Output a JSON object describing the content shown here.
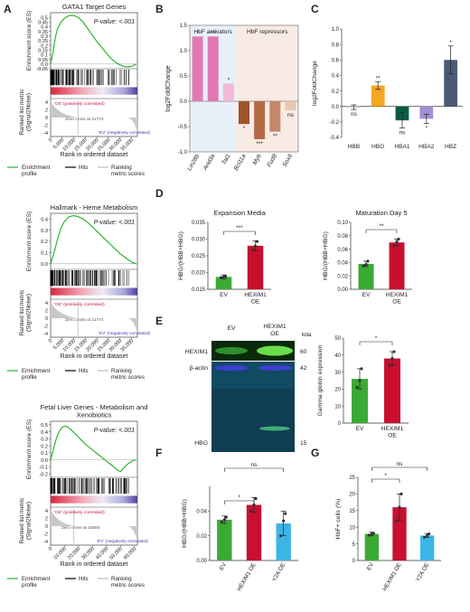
{
  "panel_letters": [
    "A",
    "B",
    "C",
    "D",
    "E",
    "F",
    "G"
  ],
  "gsea_common": {
    "es_axis_label": "Enrichment score (ES)",
    "metric_axis_label": "Ranked list metric\n(Signal2Noise)",
    "x_axis_label": "Rank in ordered dataset",
    "pos_label": "'OE' (positively correlated)",
    "neg_label": "'EV' (negatively correlated)",
    "legend": [
      "Enrichment\nprofile",
      "Hits",
      "Ranking\nmetric scores"
    ],
    "line_color": "#2db52d",
    "hit_color": "#000000"
  },
  "chart_data": [
    {
      "type": "line",
      "panel": "A1",
      "title": "GATA1 Target Genes",
      "pvalue": "P-value: <.001",
      "zero_cross": "Zero cross at 11774",
      "x_ticks": [
        "0",
        "5,000",
        "10,000",
        "15,000",
        "20,000",
        "25,000",
        "30,000",
        "35,000"
      ],
      "xlim": [
        0,
        37500
      ],
      "ylim": [
        -0.05,
        0.55
      ],
      "y_ticks": [
        "0.5",
        "0.45",
        "0.4",
        "0.35",
        "0.3",
        "0.25",
        "0.2",
        "0.15",
        "0.1",
        "0.05",
        "0.0",
        "-0.05"
      ],
      "metric_ticks": [
        "4",
        "2",
        "0",
        "-2",
        "-4"
      ],
      "x": [
        0,
        1000,
        2000,
        3000,
        4500,
        6000,
        8000,
        10000,
        12000,
        14000,
        16000,
        18000,
        20000,
        22000,
        24000,
        26000,
        28000,
        30000,
        32000,
        34000,
        35500,
        37000
      ],
      "es": [
        0.0,
        0.12,
        0.28,
        0.38,
        0.45,
        0.49,
        0.52,
        0.52,
        0.5,
        0.45,
        0.38,
        0.31,
        0.24,
        0.18,
        0.12,
        0.06,
        0.02,
        -0.01,
        -0.03,
        -0.03,
        -0.02,
        0.0
      ]
    },
    {
      "type": "line",
      "panel": "A2",
      "title": "Hallmark - Heme Metabolism",
      "pvalue": "P-value: <.001",
      "zero_cross": "Zero cross at 11774",
      "x_ticks": [
        "0",
        "5,000",
        "10,000",
        "15,000",
        "20,000",
        "25,000",
        "30,000",
        "35,000"
      ],
      "xlim": [
        0,
        37500
      ],
      "ylim": [
        -0.05,
        0.45
      ],
      "y_ticks": [
        "0.4",
        "0.3",
        "0.2",
        "0.1",
        "0.0"
      ],
      "metric_ticks": [
        "4",
        "2",
        "0",
        "-2",
        "-4"
      ],
      "x": [
        0,
        1500,
        3000,
        4500,
        6000,
        8000,
        10000,
        12000,
        14000,
        16000,
        18000,
        20000,
        22000,
        24000,
        26000,
        28000,
        30000,
        32000,
        34000,
        35500,
        37000
      ],
      "es": [
        0.0,
        0.1,
        0.22,
        0.32,
        0.38,
        0.42,
        0.43,
        0.42,
        0.4,
        0.37,
        0.33,
        0.29,
        0.25,
        0.21,
        0.17,
        0.13,
        0.09,
        0.06,
        0.03,
        0.01,
        0.0
      ]
    },
    {
      "type": "line",
      "panel": "A3",
      "title": "Fetal Liver Genes - Metabolism and\nXenobiotics",
      "pvalue": "P-value: <.001",
      "zero_cross": "Zero cross at 16684",
      "x_ticks": [
        "0",
        "10,000",
        "20,000",
        "30,000",
        "40,000",
        "50,000",
        "60,000"
      ],
      "xlim": [
        0,
        62000
      ],
      "ylim": [
        -0.25,
        0.55
      ],
      "y_ticks": [
        "0.5",
        "0.4",
        "0.3",
        "0.2",
        "0.1",
        "0.0",
        "-0.1",
        "-0.2"
      ],
      "metric_ticks": [
        "4",
        "2",
        "0",
        "-2",
        "-4"
      ],
      "x": [
        0,
        2000,
        4000,
        6000,
        8000,
        10000,
        12000,
        14000,
        16000,
        20000,
        25000,
        30000,
        35000,
        40000,
        45000,
        48000,
        50000,
        52000,
        55000,
        58000,
        61000
      ],
      "es": [
        0.0,
        0.15,
        0.3,
        0.4,
        0.46,
        0.48,
        0.47,
        0.44,
        0.4,
        0.32,
        0.22,
        0.14,
        0.06,
        -0.02,
        -0.1,
        -0.15,
        -0.17,
        -0.12,
        -0.06,
        -0.02,
        0.0
      ]
    },
    {
      "type": "bar",
      "panel": "B",
      "ylabel": "log2FoldChange",
      "ylim": [
        -1.0,
        1.5
      ],
      "y_ticks": [
        "1.5",
        "1.0",
        "0.5",
        "0.0",
        "-0.5",
        "-1.0"
      ],
      "groups": [
        "HbF activators",
        "HbF repressors"
      ],
      "categories": [
        "Lin28b",
        "Arid3a",
        "Tal1",
        "Bcl11a",
        "Myb",
        "Fud8",
        "Sox6"
      ],
      "values": [
        1.28,
        1.28,
        0.35,
        -0.45,
        -0.75,
        -0.6,
        -0.18
      ],
      "significance": [
        "*",
        "***",
        "*",
        "*",
        "***",
        "**",
        "ns"
      ],
      "colors": [
        "#e07ab2",
        "#e07ab2",
        "#f2b9d6",
        "#a0522d",
        "#b36b45",
        "#c4876b",
        "#e8c7b0"
      ]
    },
    {
      "type": "bar",
      "panel": "C",
      "ylabel": "log2FoldChange",
      "ylim": [
        -0.4,
        1.0
      ],
      "y_ticks": [
        "1.0",
        "0.8",
        "0.6",
        "0.4",
        "0.2",
        "0.0",
        "-0.2",
        "-0.4"
      ],
      "categories": [
        "HBB",
        "HBG",
        "HBA1",
        "HBA2",
        "HBZ"
      ],
      "values": [
        -0.01,
        0.27,
        -0.18,
        -0.16,
        0.6
      ],
      "errors": [
        0.03,
        0.05,
        0.1,
        0.06,
        0.18
      ],
      "significance": [
        "ns",
        "**",
        "ns",
        "*",
        "*"
      ],
      "colors": [
        "#f0f0f0",
        "#f5a623",
        "#0a5c46",
        "#a48fd4",
        "#4a5a75"
      ]
    },
    {
      "type": "bar",
      "panel": "D1",
      "title": "Expansion Media",
      "ylabel": "HBG/(HBB+HBG)",
      "ylim": [
        0.015,
        0.035
      ],
      "y_ticks": [
        "0.035",
        "0.030",
        "0.025",
        "0.020",
        "0.015"
      ],
      "categories": [
        "EV",
        "HEXIM1\nOE"
      ],
      "values": [
        0.0187,
        0.028
      ],
      "errors": [
        0.0006,
        0.0015
      ],
      "points": [
        [
          0.0185,
          0.0189,
          0.0187
        ],
        [
          0.0268,
          0.0293,
          0.0279
        ]
      ],
      "significance": [
        "***"
      ],
      "colors": [
        "#3aaa35",
        "#c8102e"
      ]
    },
    {
      "type": "bar",
      "panel": "D2",
      "title": "Maturation Day 5",
      "ylabel": "HBG/(HBB+HBG)",
      "ylim": [
        0.0,
        0.1
      ],
      "y_ticks": [
        "0.10",
        "0.08",
        "0.06",
        "0.04",
        "0.02",
        "0.00"
      ],
      "categories": [
        "EV",
        "HEXIM1\nOE"
      ],
      "values": [
        0.038,
        0.07
      ],
      "errors": [
        0.004,
        0.005
      ],
      "points": [
        [
          0.035,
          0.042,
          0.037
        ],
        [
          0.065,
          0.075,
          0.071
        ]
      ],
      "significance": [
        "**"
      ],
      "colors": [
        "#3aaa35",
        "#c8102e"
      ]
    },
    {
      "type": "bar",
      "panel": "E",
      "ylabel": "Gamma globin expression",
      "ylim": [
        0,
        50
      ],
      "y_ticks": [
        "50",
        "40",
        "30",
        "20",
        "10",
        "0"
      ],
      "categories": [
        "EV",
        "HEXIM1\nOE"
      ],
      "values": [
        26,
        38
      ],
      "errors": [
        6,
        4
      ],
      "points": [
        [
          21,
          32,
          25
        ],
        [
          34,
          42,
          38
        ]
      ],
      "significance": [
        "*"
      ],
      "colors": [
        "#3aaa35",
        "#c8102e"
      ]
    },
    {
      "type": "bar",
      "panel": "F",
      "ylabel": "HBG/(HBB+HBG)",
      "ylim": [
        0.0,
        0.06
      ],
      "y_ticks": [
        "0.00",
        "0.02",
        "0.04"
      ],
      "categories": [
        "EV",
        "HEXIM1 OE",
        "Y2A OE"
      ],
      "values": [
        0.033,
        0.045,
        0.03
      ],
      "errors": [
        0.003,
        0.006,
        0.01
      ],
      "points": [
        [
          0.031,
          0.035,
          0.033
        ],
        [
          0.04,
          0.05,
          0.045
        ],
        [
          0.02,
          0.038,
          0.032
        ]
      ],
      "significance": [
        "*",
        "ns"
      ],
      "colors": [
        "#3aaa35",
        "#c8102e",
        "#3cb4e6"
      ]
    },
    {
      "type": "bar",
      "panel": "G",
      "ylabel": "HbF+ cells (%)",
      "ylim": [
        0,
        25
      ],
      "y_ticks": [
        "0",
        "5",
        "10",
        "15",
        "20",
        "25"
      ],
      "categories": [
        "EV",
        "HEXIM1 OE",
        "Y2A OE"
      ],
      "values": [
        8,
        16,
        7.5
      ],
      "errors": [
        0.5,
        4,
        0.6
      ],
      "points": [
        [
          7.6,
          8.2,
          8.1
        ],
        [
          12,
          20,
          16
        ],
        [
          7,
          8,
          7.5
        ]
      ],
      "significance": [
        "*",
        "ns"
      ],
      "colors": [
        "#3aaa35",
        "#c8102e",
        "#3cb4e6"
      ]
    }
  ],
  "western": {
    "lanes": [
      "EV",
      "HEXIM1\nOE"
    ],
    "kda_label": "kda",
    "rows": [
      {
        "name": "HEXIM1",
        "kda": "60"
      },
      {
        "name": "β-actin",
        "kda": "42"
      },
      {
        "name": "HBG",
        "kda": "15"
      }
    ]
  }
}
